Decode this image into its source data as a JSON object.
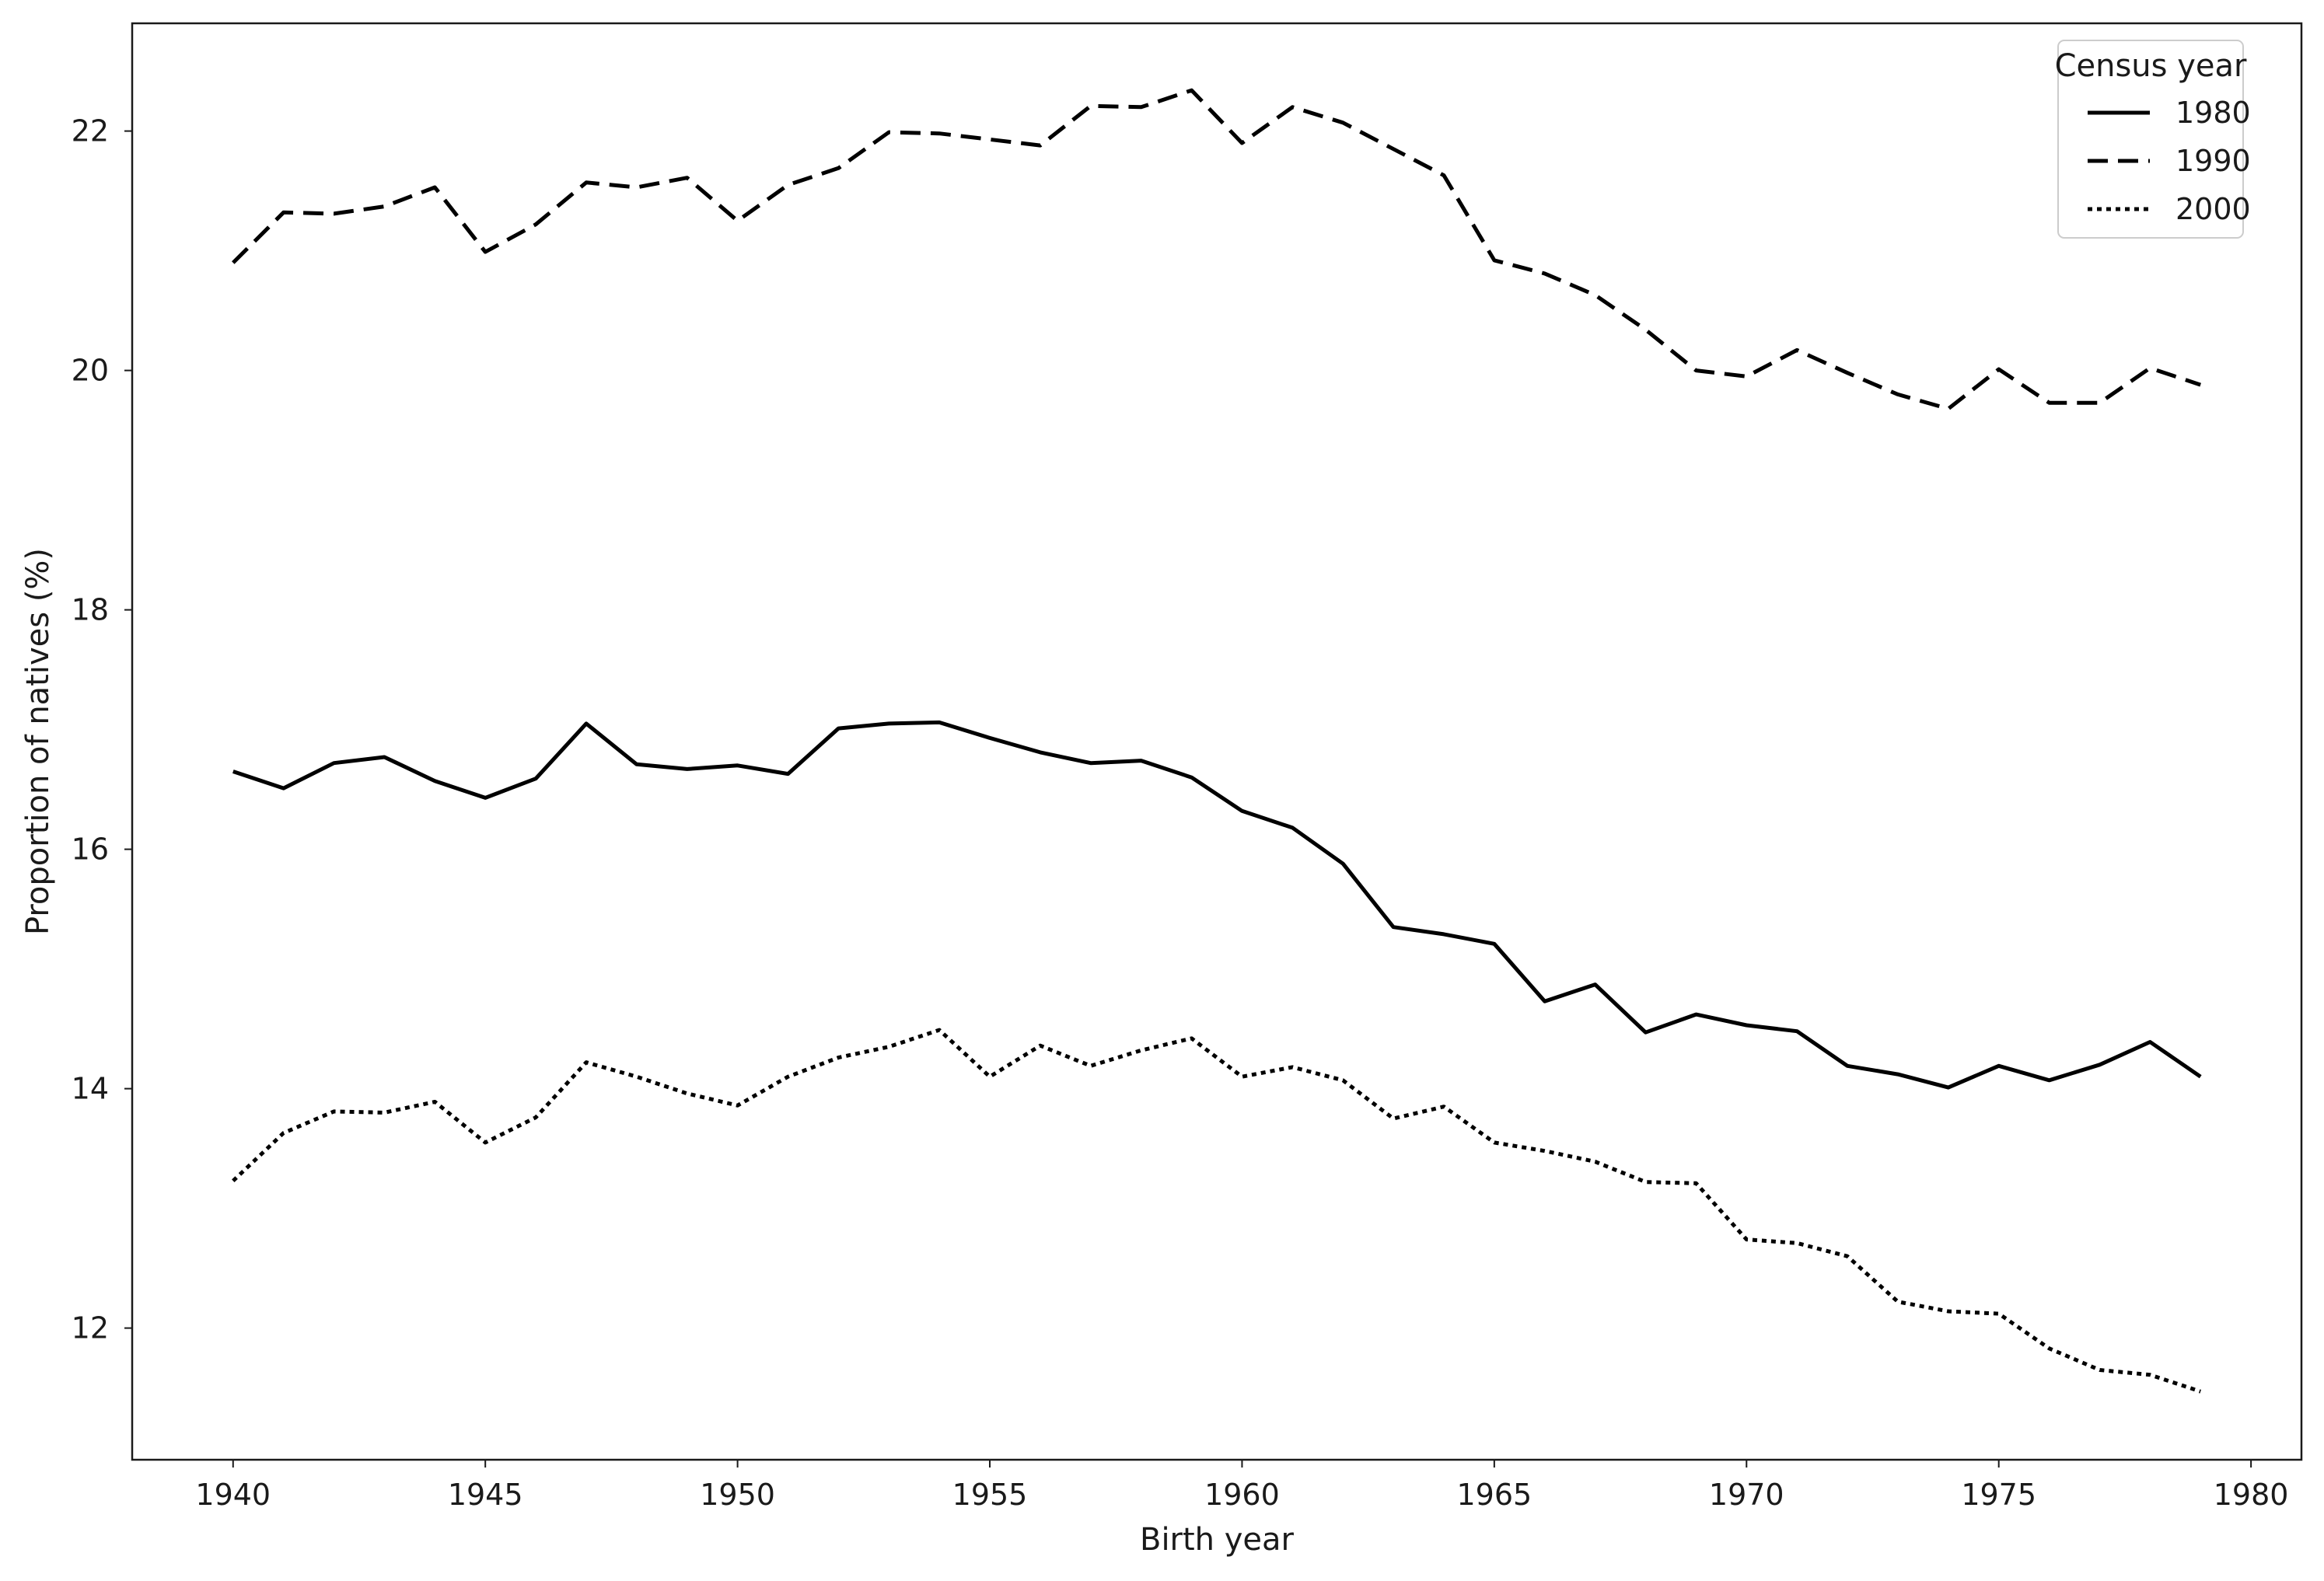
{
  "chart_data": {
    "type": "line",
    "title": "",
    "xlabel": "Birth year",
    "ylabel": "Proportion of natives (%)",
    "xlim": [
      1938,
      1981
    ],
    "ylim": [
      10.9,
      22.9
    ],
    "xticks": [
      1940,
      1945,
      1950,
      1955,
      1960,
      1965,
      1970,
      1975,
      1980
    ],
    "yticks": [
      12,
      14,
      16,
      18,
      20,
      22
    ],
    "grid": false,
    "legend": {
      "title": "Census year",
      "placement": "top-right"
    },
    "line_color": "#000000",
    "x": [
      1940,
      1941,
      1942,
      1943,
      1944,
      1945,
      1946,
      1947,
      1948,
      1949,
      1950,
      1951,
      1952,
      1953,
      1954,
      1955,
      1956,
      1957,
      1958,
      1959,
      1960,
      1961,
      1962,
      1963,
      1964,
      1965,
      1966,
      1967,
      1968,
      1969,
      1970,
      1971,
      1972,
      1973,
      1974,
      1975,
      1976,
      1977,
      1978,
      1979
    ],
    "series": [
      {
        "name": "1980",
        "style": "solid",
        "values": [
          16.65,
          16.51,
          16.72,
          16.77,
          16.57,
          16.43,
          16.59,
          17.05,
          16.71,
          16.67,
          16.7,
          16.63,
          17.01,
          17.05,
          17.06,
          16.93,
          16.81,
          16.72,
          16.74,
          16.6,
          16.32,
          16.18,
          15.88,
          15.35,
          15.29,
          15.21,
          14.73,
          14.87,
          14.47,
          14.62,
          14.53,
          14.48,
          14.19,
          14.12,
          14.01,
          14.19,
          14.07,
          14.2,
          14.39,
          14.1
        ]
      },
      {
        "name": "1990",
        "style": "dashed",
        "values": [
          20.9,
          21.32,
          21.31,
          21.37,
          21.53,
          20.99,
          21.22,
          21.57,
          21.53,
          21.61,
          21.25,
          21.55,
          21.69,
          21.99,
          21.98,
          21.93,
          21.88,
          22.21,
          22.2,
          22.34,
          21.9,
          22.2,
          22.07,
          21.85,
          21.63,
          20.92,
          20.81,
          20.63,
          20.34,
          20.0,
          19.95,
          20.17,
          19.98,
          19.8,
          19.68,
          20.01,
          19.73,
          19.73,
          20.02,
          19.88
        ]
      },
      {
        "name": "2000",
        "style": "dotted",
        "values": [
          13.23,
          13.63,
          13.81,
          13.8,
          13.89,
          13.55,
          13.76,
          14.22,
          14.1,
          13.96,
          13.86,
          14.1,
          14.26,
          14.35,
          14.49,
          14.1,
          14.36,
          14.19,
          14.32,
          14.42,
          14.1,
          14.18,
          14.07,
          13.75,
          13.85,
          13.55,
          13.48,
          13.39,
          13.22,
          13.21,
          12.74,
          12.71,
          12.6,
          12.22,
          12.14,
          12.12,
          11.83,
          11.65,
          11.61,
          11.47
        ]
      }
    ]
  }
}
